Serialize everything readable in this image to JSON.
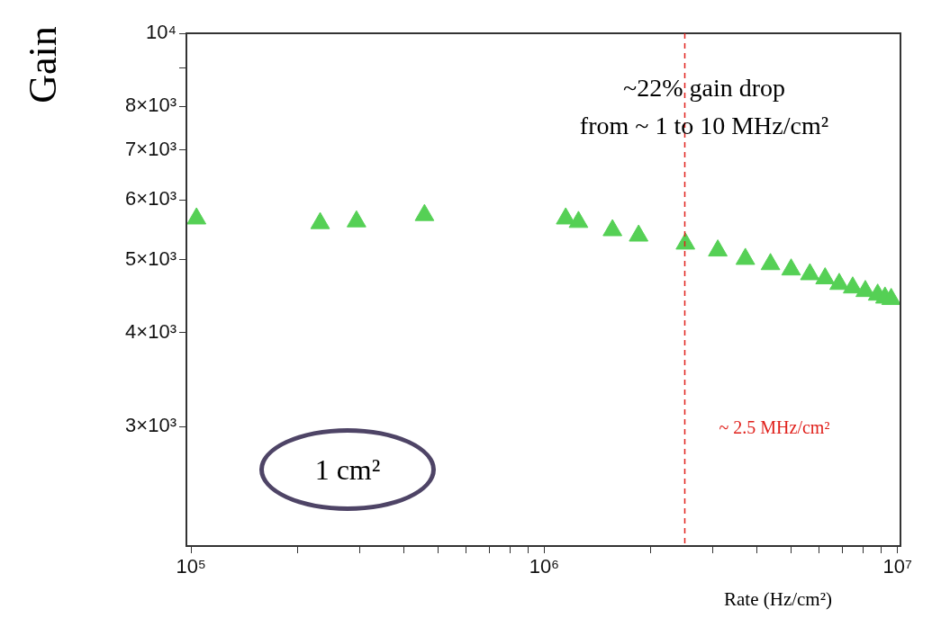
{
  "chart_data": {
    "type": "scatter",
    "xlabel": "Rate (Hz/cm²)",
    "ylabel": "Gain",
    "annotations": [
      "~22% gain drop\nfrom ~ 1 to 10 MHz/cm²",
      "1 cm²"
    ],
    "log": "xy",
    "grid": false,
    "legend": false,
    "marker": "triangle",
    "xlim": [
      97000,
      10200000
    ],
    "ylim": [
      2080,
      10000
    ],
    "xticks": [
      {
        "value": 100000,
        "label": "10⁵"
      },
      {
        "value": 200000,
        "label": null
      },
      {
        "value": 300000,
        "label": null
      },
      {
        "value": 400000,
        "label": null
      },
      {
        "value": 500000,
        "label": null
      },
      {
        "value": 600000,
        "label": null
      },
      {
        "value": 700000,
        "label": null
      },
      {
        "value": 800000,
        "label": null
      },
      {
        "value": 900000,
        "label": null
      },
      {
        "value": 1000000,
        "label": "10⁶"
      },
      {
        "value": 2000000,
        "label": null
      },
      {
        "value": 3000000,
        "label": null
      },
      {
        "value": 4000000,
        "label": null
      },
      {
        "value": 5000000,
        "label": null
      },
      {
        "value": 6000000,
        "label": null
      },
      {
        "value": 7000000,
        "label": null
      },
      {
        "value": 8000000,
        "label": null
      },
      {
        "value": 9000000,
        "label": null
      },
      {
        "value": 10000000,
        "label": "10⁷"
      }
    ],
    "yticks": [
      {
        "value": 3000,
        "label": "3×10³"
      },
      {
        "value": 4000,
        "label": "4×10³"
      },
      {
        "value": 5000,
        "label": "5×10³"
      },
      {
        "value": 6000,
        "label": "6×10³"
      },
      {
        "value": 7000,
        "label": "7×10³"
      },
      {
        "value": 8000,
        "label": "8×10³"
      },
      {
        "value": 9000,
        "label": null
      },
      {
        "value": 10000,
        "label": "10⁴"
      }
    ],
    "ref_lines": [
      {
        "axis": "x",
        "value": 2500000,
        "label": "~ 2.5 MHz/cm²",
        "color": "#e0201b",
        "line_style": "dashed"
      }
    ],
    "series": [
      {
        "color": "#55d055",
        "x": [
          103600,
          232000,
          294000,
          458000,
          1150000,
          1250000,
          1560000,
          1850000,
          2510000,
          3100000,
          3710000,
          4370000,
          5000000,
          5650000,
          6240000,
          6840000,
          7470000,
          8110000,
          8790000,
          9220000,
          9600000
        ],
        "values": [
          5670,
          5590,
          5620,
          5730,
          5670,
          5610,
          5470,
          5380,
          5250,
          5140,
          5010,
          4930,
          4850,
          4780,
          4720,
          4640,
          4590,
          4540,
          4490,
          4450,
          4430
        ]
      }
    ]
  }
}
